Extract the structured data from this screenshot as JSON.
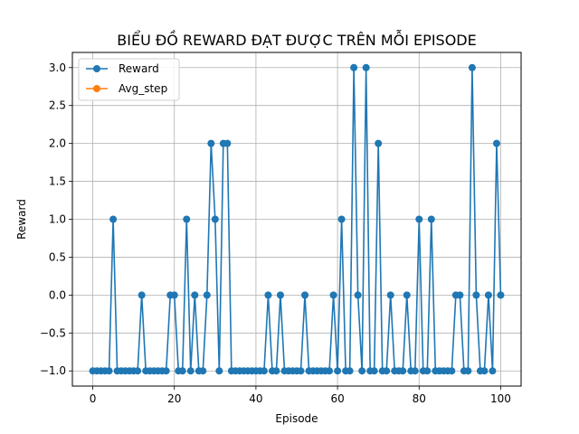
{
  "chart_data": {
    "type": "line",
    "title": "BIỂU ĐỒ REWARD ĐẠT ĐƯỢC TRÊN MỖI EPISODE",
    "xlabel": "Episode",
    "ylabel": "Reward",
    "xlim": [
      -5,
      105
    ],
    "ylim": [
      -1.2,
      3.2
    ],
    "xticks": [
      0,
      20,
      40,
      60,
      80,
      100
    ],
    "yticks": [
      -1.0,
      -0.5,
      0.0,
      0.5,
      1.0,
      1.5,
      2.0,
      2.5,
      3.0
    ],
    "xtick_labels": [
      "0",
      "20",
      "40",
      "60",
      "80",
      "100"
    ],
    "ytick_labels": [
      "−1.0",
      "−0.5",
      "0.0",
      "0.5",
      "1.0",
      "1.5",
      "2.0",
      "2.5",
      "3.0"
    ],
    "grid": true,
    "legend_position": "top-left",
    "series": [
      {
        "name": "Reward",
        "color": "#1f77b4",
        "marker": "circle",
        "x": [
          0,
          1,
          2,
          3,
          4,
          5,
          6,
          7,
          8,
          9,
          10,
          11,
          12,
          13,
          14,
          15,
          16,
          17,
          18,
          19,
          20,
          21,
          22,
          23,
          24,
          25,
          26,
          27,
          28,
          29,
          30,
          31,
          32,
          33,
          34,
          35,
          36,
          37,
          38,
          39,
          40,
          41,
          42,
          43,
          44,
          45,
          46,
          47,
          48,
          49,
          50,
          51,
          52,
          53,
          54,
          55,
          56,
          57,
          58,
          59,
          60,
          61,
          62,
          63,
          64,
          65,
          66,
          67,
          68,
          69,
          70,
          71,
          72,
          73,
          74,
          75,
          76,
          77,
          78,
          79,
          80,
          81,
          82,
          83,
          84,
          85,
          86,
          87,
          88,
          89,
          90,
          91,
          92,
          93,
          94,
          95,
          96,
          97,
          98,
          99,
          100
        ],
        "y": [
          -1,
          -1,
          -1,
          -1,
          -1,
          1,
          -1,
          -1,
          -1,
          -1,
          -1,
          -1,
          0,
          -1,
          -1,
          -1,
          -1,
          -1,
          -1,
          0,
          0,
          -1,
          -1,
          1,
          -1,
          0,
          -1,
          -1,
          0,
          2,
          1,
          -1,
          2,
          2,
          -1,
          -1,
          -1,
          -1,
          -1,
          -1,
          -1,
          -1,
          -1,
          0,
          -1,
          -1,
          0,
          -1,
          -1,
          -1,
          -1,
          -1,
          0,
          -1,
          -1,
          -1,
          -1,
          -1,
          -1,
          0,
          -1,
          1,
          -1,
          -1,
          3,
          0,
          -1,
          3,
          -1,
          -1,
          2,
          -1,
          -1,
          0,
          -1,
          -1,
          -1,
          0,
          -1,
          -1,
          1,
          -1,
          -1,
          1,
          -1,
          -1,
          -1,
          -1,
          -1,
          0,
          0,
          -1,
          -1,
          3,
          0,
          -1,
          -1,
          0,
          -1,
          2,
          0
        ]
      },
      {
        "name": "Avg_step",
        "color": "#ff7f0e",
        "marker": "circle",
        "x": [],
        "y": []
      }
    ]
  }
}
